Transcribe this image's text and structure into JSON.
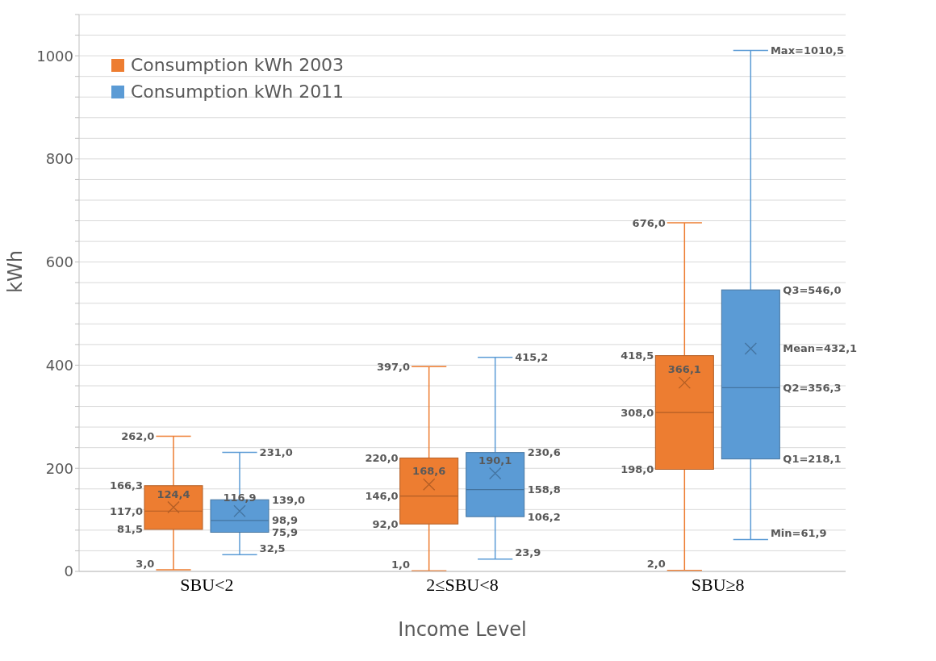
{
  "chart_data": {
    "type": "box",
    "xlabel": "Income Level",
    "ylabel": "kWh",
    "categories": [
      "SBU<2",
      "2≤SBU<8",
      "SBU≥8"
    ],
    "series": [
      {
        "name": "Consumption kWh 2003",
        "color": "#ed7d31",
        "boxes": [
          {
            "low": 3.0,
            "q1": 81.5,
            "median": 117.0,
            "q3": 166.3,
            "high": 262.0,
            "mean": 124.4
          },
          {
            "low": 1.0,
            "q1": 92.0,
            "median": 146.0,
            "q3": 220.0,
            "high": 397.0,
            "mean": 168.6
          },
          {
            "low": 2.0,
            "q1": 198.0,
            "median": 308.0,
            "q3": 418.5,
            "high": 676.0,
            "mean": 366.1
          }
        ]
      },
      {
        "name": "Consumption kWh 2011",
        "color": "#5b9bd5",
        "boxes": [
          {
            "low": 32.5,
            "q1": 75.9,
            "median": 98.9,
            "q3": 139.0,
            "high": 231.0,
            "mean": 116.9
          },
          {
            "low": 23.9,
            "q1": 106.2,
            "median": 158.8,
            "q3": 230.6,
            "high": 415.2,
            "mean": 190.1
          },
          {
            "low": 61.9,
            "q1": 218.1,
            "median": 356.3,
            "q3": 546.0,
            "high": 1010.5,
            "mean": 432.1
          }
        ]
      }
    ],
    "annotations": [
      "262,0",
      "166,3",
      "124,4",
      "117,0",
      "81,5",
      "3,0",
      "397,0",
      "220,0",
      "168,6",
      "146,0",
      "92,0",
      "1,0",
      "676,0",
      "418,5",
      "366,1",
      "308,0",
      "198,0",
      "2,0",
      "231,0",
      "139,0",
      "116,9",
      "98,9",
      "75,9",
      "32,5",
      "415,2",
      "230,6",
      "190,1",
      "158,8",
      "106,2",
      "23,9",
      "Max=1010,5",
      "Q3=546,0",
      "Mean=432,1",
      "Q2=356,3",
      "Q1=218,1",
      "Min=61,9"
    ],
    "ylim": [
      0,
      1080
    ],
    "yticks": [
      0,
      {
        "value": 40,
        "label": null
      },
      {
        "value": 80,
        "label": null
      },
      {
        "value": 120,
        "label": null
      },
      {
        "value": 160,
        "label": null
      },
      200,
      {
        "value": 240,
        "label": null
      },
      {
        "value": 280,
        "label": null
      },
      {
        "value": 320,
        "label": null
      },
      {
        "value": 360,
        "label": null
      },
      400,
      {
        "value": 440,
        "label": null
      },
      {
        "value": 480,
        "label": null
      },
      {
        "value": 520,
        "label": null
      },
      {
        "value": 560,
        "label": null
      },
      600,
      {
        "value": 640,
        "label": null
      },
      {
        "value": 680,
        "label": null
      },
      {
        "value": 720,
        "label": null
      },
      {
        "value": 760,
        "label": null
      },
      800,
      {
        "value": 840,
        "label": null
      },
      {
        "value": 880,
        "label": null
      },
      {
        "value": 920,
        "label": null
      },
      {
        "value": 960,
        "label": null
      },
      1000,
      {
        "value": 1040,
        "label": null
      },
      {
        "value": 1080,
        "label": null
      }
    ],
    "grid": "y",
    "legend": "top left",
    "marker": "cross"
  }
}
